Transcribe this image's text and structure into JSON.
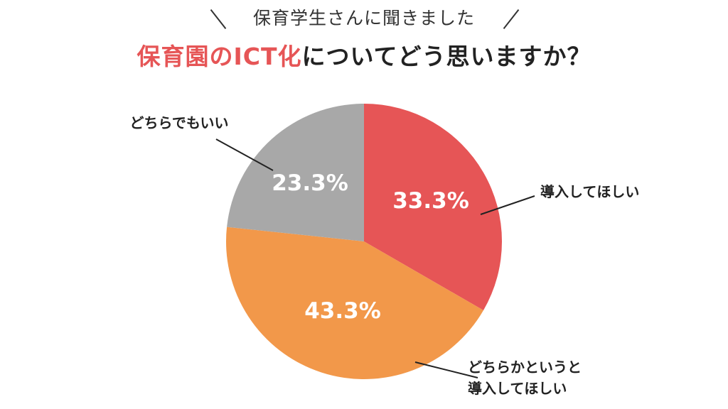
{
  "header": {
    "subtitle": "保育学生さんに聞きました",
    "title_accent": "保育園のICT化",
    "title_rest": "についてどう思いますか？"
  },
  "chart_data": {
    "type": "pie",
    "categories": [
      "導入してほしい",
      "どちらかというと導入してほしい",
      "どちらでもいい"
    ],
    "label_lines": [
      [
        "導入してほしい"
      ],
      [
        "どちらかというと",
        "導入してほしい"
      ],
      [
        "どちらでもいい"
      ]
    ],
    "values": [
      33.3,
      43.3,
      23.3
    ],
    "value_labels": [
      "33.3%",
      "43.3%",
      "23.3%"
    ],
    "colors": [
      "#e65556",
      "#f2984a",
      "#a8a8a8"
    ]
  }
}
